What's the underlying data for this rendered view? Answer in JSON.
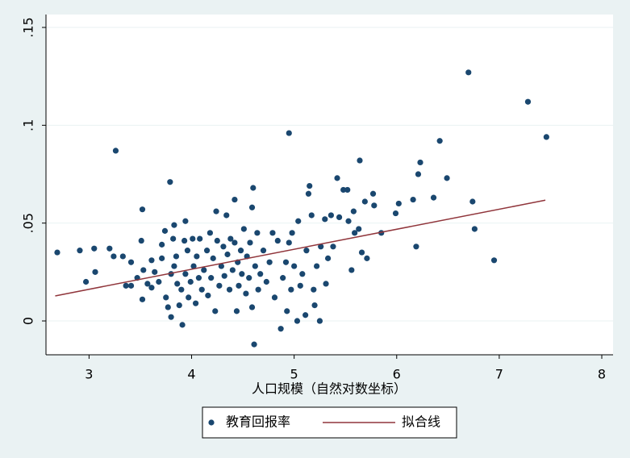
{
  "chart_data": {
    "type": "scatter",
    "x_label": "人口规模（自然对数坐标）",
    "xlim": [
      2.58,
      8.11
    ],
    "ylim": [
      -0.0173,
      0.1566
    ],
    "xticks": [
      3,
      4,
      5,
      6,
      7,
      8
    ],
    "yticks": [
      0,
      {
        "value": 0.05,
        "label": ".05"
      },
      {
        "value": 0.1,
        "label": ".1"
      },
      {
        "value": 0.15,
        "label": ".15"
      }
    ],
    "grid": true,
    "legend": "bottom",
    "series": [
      {
        "name": "教育回报率",
        "color": "#1a476f",
        "type": "scatter",
        "x": [
          2.69,
          2.91,
          2.97,
          3.06,
          3.05,
          3.2,
          3.26,
          3.24,
          3.33,
          3.36,
          3.41,
          3.41,
          3.47,
          3.51,
          3.52,
          3.52,
          3.53,
          3.57,
          3.61,
          3.61,
          3.64,
          3.68,
          3.71,
          3.71,
          3.74,
          3.75,
          3.77,
          3.79,
          3.8,
          3.8,
          3.82,
          3.83,
          3.83,
          3.85,
          3.86,
          3.88,
          3.9,
          3.91,
          3.93,
          3.94,
          3.94,
          3.96,
          3.97,
          3.99,
          4.01,
          4.02,
          4.04,
          4.05,
          4.07,
          4.08,
          4.1,
          4.12,
          4.15,
          4.16,
          4.18,
          4.19,
          4.21,
          4.23,
          4.24,
          4.25,
          4.27,
          4.29,
          4.31,
          4.32,
          4.34,
          4.35,
          4.37,
          4.38,
          4.4,
          4.42,
          4.42,
          4.44,
          4.45,
          4.46,
          4.48,
          4.49,
          4.51,
          4.53,
          4.54,
          4.56,
          4.57,
          4.59,
          4.59,
          4.6,
          4.61,
          4.62,
          4.64,
          4.65,
          4.67,
          4.7,
          4.73,
          4.76,
          4.79,
          4.81,
          4.84,
          4.87,
          4.89,
          4.92,
          4.93,
          4.95,
          4.95,
          4.97,
          4.98,
          5.0,
          5.03,
          5.04,
          5.06,
          5.08,
          5.11,
          5.12,
          5.14,
          5.15,
          5.17,
          5.19,
          5.2,
          5.22,
          5.25,
          5.26,
          5.3,
          5.31,
          5.33,
          5.36,
          5.38,
          5.42,
          5.44,
          5.48,
          5.52,
          5.53,
          5.56,
          5.58,
          5.59,
          5.63,
          5.64,
          5.66,
          5.69,
          5.71,
          5.77,
          5.78,
          5.85,
          5.99,
          6.02,
          6.16,
          6.19,
          6.21,
          6.23,
          6.36,
          6.42,
          6.49,
          6.7,
          6.74,
          6.76,
          6.95,
          7.28,
          7.46
        ],
        "values": [
          0.035,
          0.036,
          0.02,
          0.025,
          0.037,
          0.037,
          0.087,
          0.033,
          0.033,
          0.018,
          0.018,
          0.03,
          0.022,
          0.041,
          0.057,
          0.011,
          0.026,
          0.019,
          0.017,
          0.031,
          0.025,
          0.02,
          0.039,
          0.032,
          0.046,
          0.012,
          0.007,
          0.071,
          0.002,
          0.024,
          0.042,
          0.049,
          0.028,
          0.033,
          0.019,
          0.008,
          0.016,
          -0.002,
          0.041,
          0.051,
          0.024,
          0.036,
          0.012,
          0.02,
          0.042,
          0.028,
          0.009,
          0.033,
          0.022,
          0.042,
          0.016,
          0.026,
          0.036,
          0.013,
          0.045,
          0.022,
          0.032,
          0.005,
          0.056,
          0.041,
          0.018,
          0.028,
          0.038,
          0.023,
          0.054,
          0.034,
          0.016,
          0.042,
          0.026,
          0.062,
          0.04,
          0.005,
          0.03,
          0.018,
          0.036,
          0.024,
          0.047,
          0.014,
          0.033,
          0.022,
          0.04,
          0.058,
          0.007,
          0.068,
          -0.012,
          0.028,
          0.045,
          0.016,
          0.024,
          0.036,
          0.02,
          0.03,
          0.045,
          0.012,
          0.041,
          -0.004,
          0.022,
          0.03,
          0.005,
          0.096,
          0.04,
          0.016,
          0.045,
          0.028,
          0.0,
          0.051,
          0.018,
          0.024,
          0.003,
          0.036,
          0.065,
          0.069,
          0.054,
          0.016,
          0.008,
          0.028,
          0.0,
          0.038,
          0.052,
          0.019,
          0.032,
          0.054,
          0.038,
          0.073,
          0.053,
          0.067,
          0.067,
          0.051,
          0.026,
          0.056,
          0.045,
          0.047,
          0.082,
          0.035,
          0.061,
          0.032,
          0.065,
          0.059,
          0.045,
          0.055,
          0.06,
          0.062,
          0.038,
          0.075,
          0.081,
          0.063,
          0.092,
          0.073,
          0.127,
          0.061,
          0.047,
          0.031,
          0.112,
          0.094
        ]
      },
      {
        "name": "拟合线",
        "color": "#90353b",
        "type": "line",
        "x": [
          2.67,
          7.45
        ],
        "values": [
          0.0128,
          0.0617
        ]
      }
    ]
  }
}
